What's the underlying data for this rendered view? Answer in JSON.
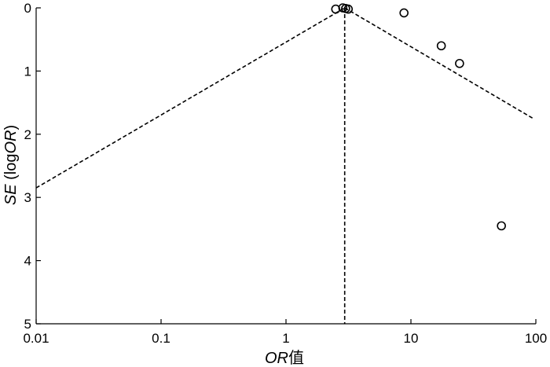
{
  "chart_data": {
    "type": "scatter",
    "subtype": "funnel-plot",
    "title": "",
    "xlabel": {
      "italic": "OR",
      "suffix": "值"
    },
    "ylabel": {
      "italic": "SE",
      "suffix": " (log",
      "italic2": "OR",
      "close": ")"
    },
    "x_scale": "log",
    "xlim": [
      0.01,
      100
    ],
    "x_ticks": [
      {
        "value": 0.01,
        "label": "0.01"
      },
      {
        "value": 0.1,
        "label": "0.1"
      },
      {
        "value": 1,
        "label": "1"
      },
      {
        "value": 10,
        "label": "10"
      },
      {
        "value": 100,
        "label": "100"
      }
    ],
    "ylim": [
      0,
      5
    ],
    "y_inverted": true,
    "y_ticks": [
      {
        "value": 0,
        "label": "0"
      },
      {
        "value": 1,
        "label": "1"
      },
      {
        "value": 2,
        "label": "2"
      },
      {
        "value": 3,
        "label": "3"
      },
      {
        "value": 4,
        "label": "4"
      },
      {
        "value": 5,
        "label": "5"
      }
    ],
    "pooled_or": 2.95,
    "funnel_lines": [
      {
        "points": [
          [
            0.01,
            2.85
          ],
          [
            2.95,
            0
          ]
        ]
      },
      {
        "points": [
          [
            2.95,
            0
          ],
          [
            95,
            1.75
          ]
        ]
      },
      {
        "points": [
          [
            2.95,
            0
          ],
          [
            2.95,
            5
          ]
        ]
      }
    ],
    "points": [
      {
        "or": 2.5,
        "se": 0.02
      },
      {
        "or": 2.85,
        "se": 0.0
      },
      {
        "or": 3.0,
        "se": 0.01
      },
      {
        "or": 3.15,
        "se": 0.02
      },
      {
        "or": 8.8,
        "se": 0.08
      },
      {
        "or": 17.5,
        "se": 0.6
      },
      {
        "or": 24.5,
        "se": 0.88
      },
      {
        "or": 53,
        "se": 3.45
      }
    ],
    "grid": false,
    "legend": "none"
  }
}
